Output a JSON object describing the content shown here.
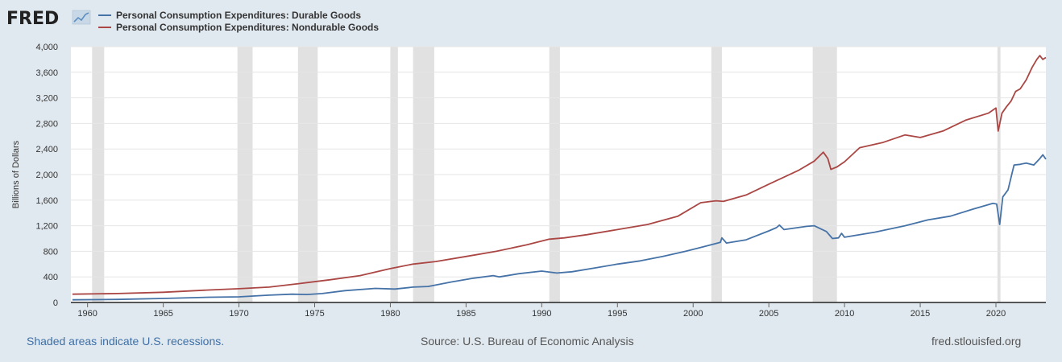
{
  "logo": {
    "text": "FRED"
  },
  "legend": {
    "items": [
      {
        "label": "Personal Consumption Expenditures: Durable Goods",
        "color": "#4572a7"
      },
      {
        "label": "Personal Consumption Expenditures: Nondurable Goods",
        "color": "#aa4643"
      }
    ]
  },
  "footer": {
    "note": "Shaded areas indicate U.S. recessions.",
    "source": "Source: U.S. Bureau of Economic Analysis",
    "url": "fred.stlouisfed.org"
  },
  "chart_data": {
    "type": "line",
    "ylabel": "Billions of Dollars",
    "xlabel": "",
    "ylim": [
      0,
      4000
    ],
    "xlim": [
      1958.9,
      2023.3
    ],
    "yticks": [
      0,
      400,
      800,
      1200,
      1600,
      2000,
      2400,
      2800,
      3200,
      3600,
      4000
    ],
    "ytick_labels": [
      "0",
      "400",
      "800",
      "1,200",
      "1,600",
      "2,000",
      "2,400",
      "2,800",
      "3,200",
      "3,600",
      "4,000"
    ],
    "xticks": [
      1960,
      1965,
      1970,
      1975,
      1980,
      1985,
      1990,
      1995,
      2000,
      2005,
      2010,
      2015,
      2020
    ],
    "xtick_labels": [
      "1960",
      "1965",
      "1970",
      "1975",
      "1980",
      "1985",
      "1990",
      "1995",
      "2000",
      "2005",
      "2010",
      "2015",
      "2020"
    ],
    "grid": true,
    "legend_position": "top-left",
    "recessions": [
      [
        1960.3,
        1961.1
      ],
      [
        1969.9,
        1970.9
      ],
      [
        1973.9,
        1975.2
      ],
      [
        1980.0,
        1980.5
      ],
      [
        1981.5,
        1982.9
      ],
      [
        1990.5,
        1991.2
      ],
      [
        2001.2,
        2001.9
      ],
      [
        2007.9,
        2009.5
      ],
      [
        2020.1,
        2020.3
      ]
    ],
    "series": [
      {
        "name": "Personal Consumption Expenditures: Durable Goods",
        "color": "#4572a7",
        "points": [
          [
            1959.0,
            42
          ],
          [
            1962.0,
            48
          ],
          [
            1965.0,
            63
          ],
          [
            1968.0,
            82
          ],
          [
            1970.0,
            88
          ],
          [
            1972.0,
            115
          ],
          [
            1973.5,
            130
          ],
          [
            1974.5,
            125
          ],
          [
            1975.5,
            140
          ],
          [
            1977.0,
            185
          ],
          [
            1979.0,
            220
          ],
          [
            1980.3,
            210
          ],
          [
            1981.5,
            240
          ],
          [
            1982.5,
            250
          ],
          [
            1984.0,
            320
          ],
          [
            1985.5,
            380
          ],
          [
            1986.8,
            420
          ],
          [
            1987.2,
            400
          ],
          [
            1988.5,
            450
          ],
          [
            1990.0,
            490
          ],
          [
            1991.0,
            460
          ],
          [
            1992.0,
            480
          ],
          [
            1993.5,
            540
          ],
          [
            1995.0,
            600
          ],
          [
            1996.5,
            650
          ],
          [
            1998.0,
            720
          ],
          [
            1999.5,
            800
          ],
          [
            2000.5,
            860
          ],
          [
            2001.8,
            940
          ],
          [
            2001.9,
            1010
          ],
          [
            2002.2,
            930
          ],
          [
            2003.5,
            980
          ],
          [
            2005.0,
            1120
          ],
          [
            2005.5,
            1170
          ],
          [
            2005.7,
            1210
          ],
          [
            2006.0,
            1140
          ],
          [
            2007.5,
            1190
          ],
          [
            2008.0,
            1200
          ],
          [
            2008.8,
            1110
          ],
          [
            2009.2,
            1000
          ],
          [
            2009.6,
            1010
          ],
          [
            2009.8,
            1080
          ],
          [
            2010.0,
            1020
          ],
          [
            2012.0,
            1100
          ],
          [
            2014.0,
            1200
          ],
          [
            2015.5,
            1290
          ],
          [
            2017.0,
            1350
          ],
          [
            2018.5,
            1460
          ],
          [
            2019.8,
            1550
          ],
          [
            2020.05,
            1540
          ],
          [
            2020.25,
            1220
          ],
          [
            2020.45,
            1650
          ],
          [
            2020.8,
            1760
          ],
          [
            2021.2,
            2150
          ],
          [
            2021.6,
            2160
          ],
          [
            2022.0,
            2180
          ],
          [
            2022.5,
            2150
          ],
          [
            2022.9,
            2250
          ],
          [
            2023.1,
            2310
          ],
          [
            2023.3,
            2240
          ]
        ]
      },
      {
        "name": "Personal Consumption Expenditures: Nondurable Goods",
        "color": "#aa4643",
        "points": [
          [
            1959.0,
            130
          ],
          [
            1962.0,
            140
          ],
          [
            1965.0,
            160
          ],
          [
            1968.0,
            195
          ],
          [
            1970.0,
            215
          ],
          [
            1972.0,
            240
          ],
          [
            1974.0,
            295
          ],
          [
            1976.0,
            355
          ],
          [
            1978.0,
            420
          ],
          [
            1980.0,
            530
          ],
          [
            1981.5,
            600
          ],
          [
            1983.0,
            640
          ],
          [
            1985.0,
            720
          ],
          [
            1987.0,
            800
          ],
          [
            1989.0,
            900
          ],
          [
            1990.5,
            990
          ],
          [
            1991.5,
            1010
          ],
          [
            1993.0,
            1060
          ],
          [
            1995.0,
            1140
          ],
          [
            1997.0,
            1220
          ],
          [
            1999.0,
            1350
          ],
          [
            2000.5,
            1560
          ],
          [
            2001.5,
            1590
          ],
          [
            2002.0,
            1580
          ],
          [
            2003.5,
            1680
          ],
          [
            2005.0,
            1850
          ],
          [
            2006.0,
            1960
          ],
          [
            2007.0,
            2070
          ],
          [
            2008.0,
            2210
          ],
          [
            2008.6,
            2350
          ],
          [
            2008.9,
            2250
          ],
          [
            2009.1,
            2080
          ],
          [
            2009.5,
            2120
          ],
          [
            2010.0,
            2200
          ],
          [
            2011.0,
            2420
          ],
          [
            2012.5,
            2500
          ],
          [
            2014.0,
            2620
          ],
          [
            2015.0,
            2580
          ],
          [
            2016.5,
            2680
          ],
          [
            2018.0,
            2850
          ],
          [
            2019.5,
            2960
          ],
          [
            2020.0,
            3040
          ],
          [
            2020.15,
            2680
          ],
          [
            2020.4,
            2960
          ],
          [
            2020.7,
            3060
          ],
          [
            2021.0,
            3150
          ],
          [
            2021.3,
            3300
          ],
          [
            2021.6,
            3340
          ],
          [
            2022.0,
            3480
          ],
          [
            2022.4,
            3680
          ],
          [
            2022.7,
            3800
          ],
          [
            2022.9,
            3860
          ],
          [
            2023.1,
            3800
          ],
          [
            2023.3,
            3830
          ]
        ]
      }
    ]
  }
}
